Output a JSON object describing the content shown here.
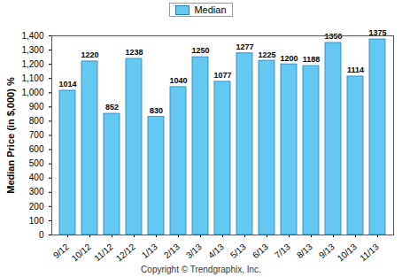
{
  "chart_data": {
    "type": "bar",
    "y_label": "Median Price (in $,000) %",
    "caption": "Copyright © Trendgraphix, Inc.",
    "categories": [
      "9/12",
      "10/12",
      "11/12",
      "12/12",
      "1/13",
      "2/13",
      "3/13",
      "4/13",
      "5/13",
      "6/13",
      "7/13",
      "8/13",
      "9/13",
      "10/13",
      "11/13"
    ],
    "series": [
      {
        "name": "Median",
        "color": "#63c8f2",
        "values": [
          1014,
          1220,
          852,
          1238,
          830,
          1040,
          1250,
          1077,
          1277,
          1225,
          1200,
          1188,
          1350,
          1114,
          1375
        ]
      }
    ],
    "ylim": [
      0,
      1400
    ],
    "yticks": [
      0,
      100,
      200,
      300,
      400,
      500,
      600,
      700,
      800,
      900,
      1000,
      1100,
      1200,
      1300,
      1400
    ],
    "grid": false,
    "legend": "top",
    "data_labels": true
  }
}
